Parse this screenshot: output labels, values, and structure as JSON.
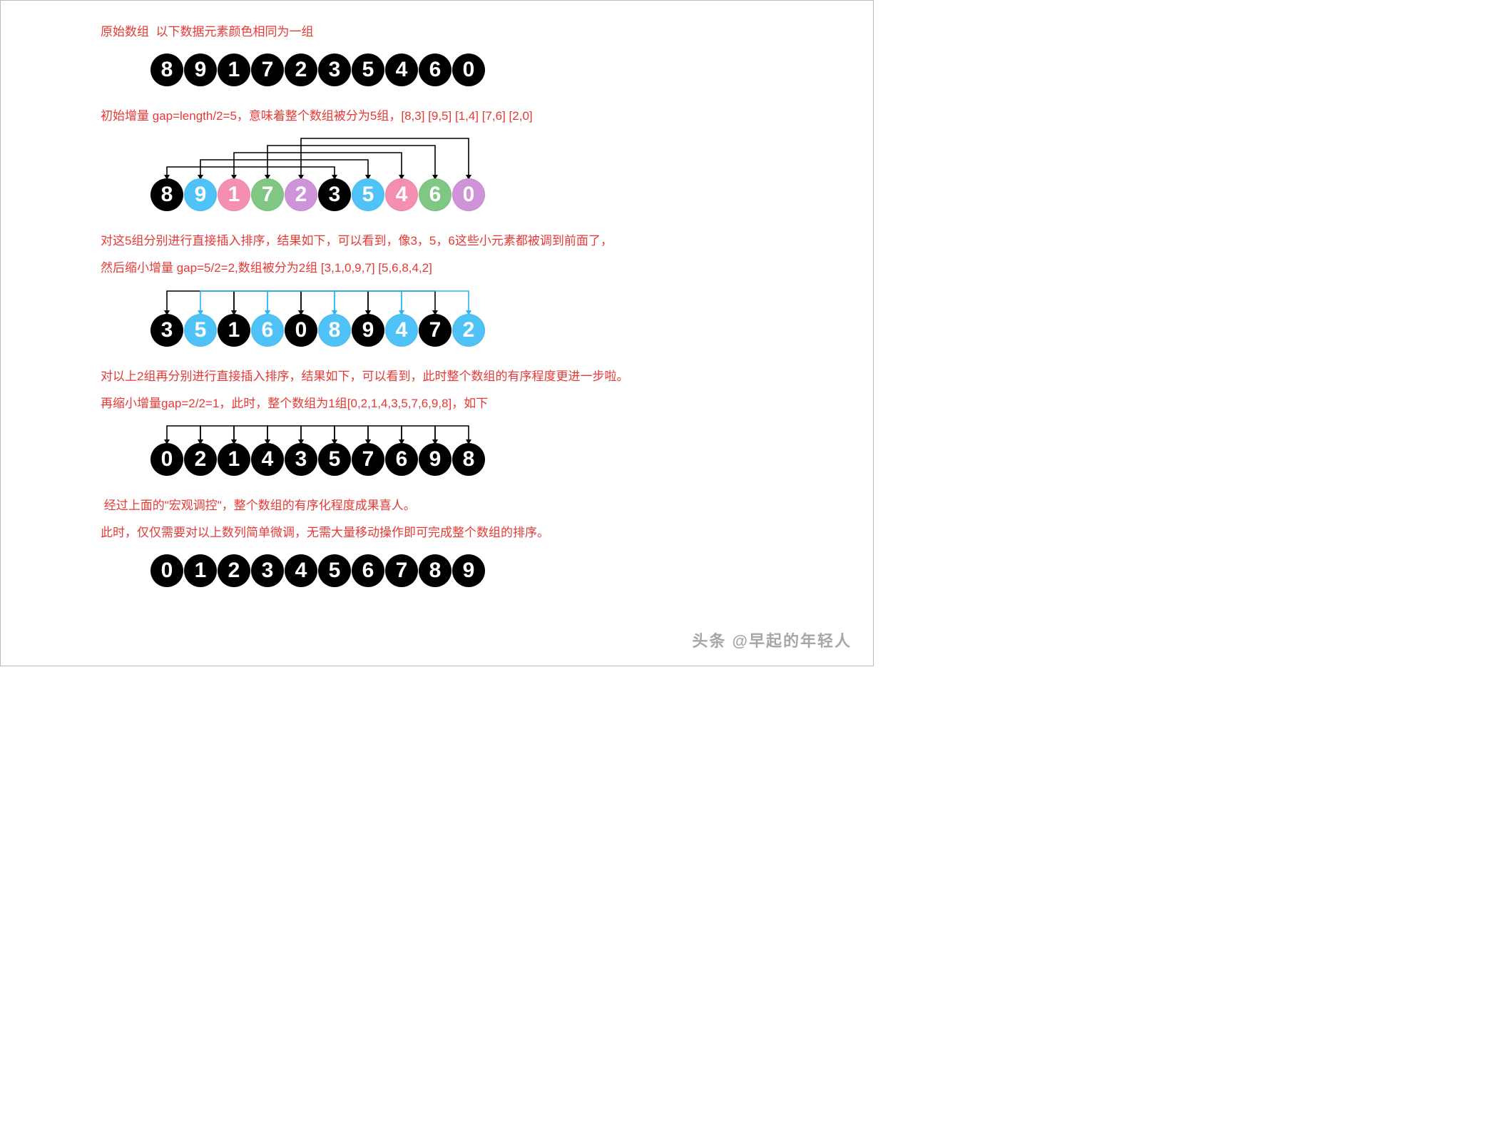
{
  "layout": {
    "circle_diameter": 46,
    "circle_pitch": 47,
    "row_indent": 70
  },
  "colors": {
    "black": "#000000",
    "blue": "#4fc3f7",
    "pink": "#f48fb1",
    "green": "#81c784",
    "purple": "#ce93d8",
    "text_red": "#e53935",
    "arc_black": "#000000",
    "arc_blue": "#29b6f6"
  },
  "captions": {
    "c1": "原始数组  以下数据元素颜色相同为一组",
    "c2": "初始增量 gap=length/2=5，意味着整个数组被分为5组，[8,3] [9,5] [1,4] [7,6] [2,0]",
    "c3a": "对这5组分别进行直接插入排序，结果如下，可以看到，像3，5，6这些小元素都被调到前面了，",
    "c3b": "然后缩小增量 gap=5/2=2,数组被分为2组 [3,1,0,9,7] [5,6,8,4,2]",
    "c4a": "对以上2组再分别进行直接插入排序，结果如下，可以看到，此时整个数组的有序程度更进一步啦。",
    "c4b": "再缩小增量gap=2/2=1，此时，整个数组为1组[0,2,1,4,3,5,7,6,9,8]，如下",
    "c5a": " 经过上面的\"宏观调控\"，整个数组的有序化程度成果喜人。",
    "c5b": "此时，仅仅需要对以上数列简单微调，无需大量移动操作即可完成整个数组的排序。"
  },
  "rows": {
    "r1": {
      "values": [
        8,
        9,
        1,
        7,
        2,
        3,
        5,
        4,
        6,
        0
      ],
      "palette": [
        "black",
        "black",
        "black",
        "black",
        "black",
        "black",
        "black",
        "black",
        "black",
        "black"
      ]
    },
    "r2": {
      "values": [
        8,
        9,
        1,
        7,
        2,
        3,
        5,
        4,
        6,
        0
      ],
      "palette": [
        "black",
        "blue",
        "pink",
        "green",
        "purple",
        "black",
        "blue",
        "pink",
        "green",
        "purple"
      ],
      "arcs": {
        "color": "arc_black",
        "pairs": [
          [
            0,
            5
          ],
          [
            1,
            6
          ],
          [
            2,
            7
          ],
          [
            3,
            8
          ],
          [
            4,
            9
          ]
        ],
        "heights": [
          18,
          28,
          38,
          48,
          58
        ]
      }
    },
    "r3": {
      "values": [
        3,
        5,
        1,
        6,
        0,
        8,
        9,
        4,
        7,
        2
      ],
      "palette": [
        "black",
        "blue",
        "black",
        "blue",
        "black",
        "blue",
        "black",
        "blue",
        "black",
        "blue"
      ],
      "arcs": {
        "colorA": "arc_black",
        "colorB": "arc_blue",
        "pairsA": [
          [
            0,
            2
          ],
          [
            2,
            4
          ],
          [
            4,
            6
          ],
          [
            6,
            8
          ]
        ],
        "pairsB": [
          [
            1,
            3
          ],
          [
            3,
            5
          ],
          [
            5,
            7
          ],
          [
            7,
            9
          ]
        ],
        "height": 34
      }
    },
    "r4": {
      "values": [
        0,
        2,
        1,
        4,
        3,
        5,
        7,
        6,
        9,
        8
      ],
      "palette": [
        "black",
        "black",
        "black",
        "black",
        "black",
        "black",
        "black",
        "black",
        "black",
        "black"
      ],
      "arcs": {
        "color": "arc_black",
        "pairs": [
          [
            0,
            1
          ],
          [
            1,
            2
          ],
          [
            2,
            3
          ],
          [
            3,
            4
          ],
          [
            4,
            5
          ],
          [
            5,
            6
          ],
          [
            6,
            7
          ],
          [
            7,
            8
          ],
          [
            8,
            9
          ]
        ],
        "height": 26
      }
    },
    "r5": {
      "values": [
        0,
        1,
        2,
        3,
        4,
        5,
        6,
        7,
        8,
        9
      ],
      "palette": [
        "black",
        "black",
        "black",
        "black",
        "black",
        "black",
        "black",
        "black",
        "black",
        "black"
      ]
    }
  },
  "watermark": "头条 @早起的年轻人"
}
